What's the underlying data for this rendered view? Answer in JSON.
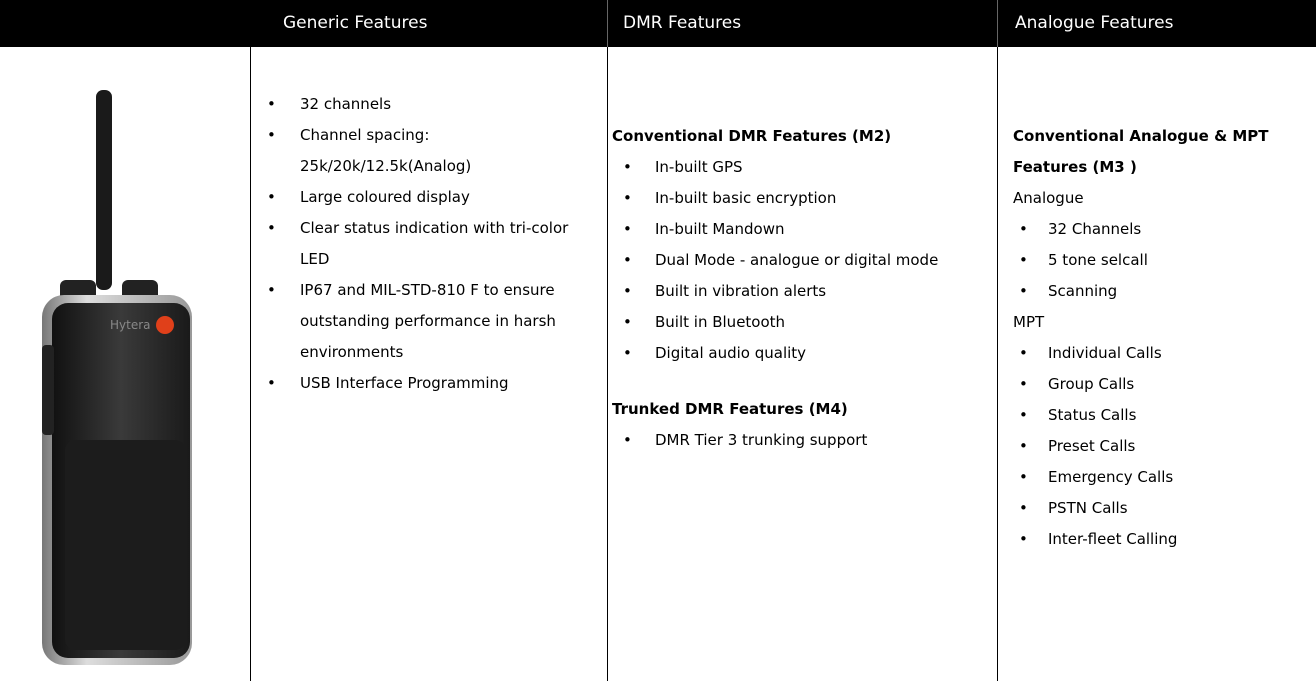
{
  "header": {
    "columns": [
      "Generic Features",
      "DMR Features",
      "Analogue Features"
    ]
  },
  "device": {
    "brand": "Hytera"
  },
  "generic": {
    "items": [
      "32 channels",
      "Channel spacing: 25k/20k/12.5k(Analog)",
      "Large coloured display",
      "Clear status indication with tri-color LED",
      "IP67 and MIL-STD-810 F to ensure outstanding performance in harsh environments",
      "USB Interface Programming"
    ]
  },
  "dmr": {
    "sections": [
      {
        "heading": "Conventional DMR Features (M2)",
        "items": [
          "In-built GPS",
          "In-built basic encryption",
          "In-built Mandown",
          "Dual Mode - analogue or digital mode",
          "Built in vibration alerts",
          "Built in Bluetooth",
          "Digital audio quality"
        ]
      },
      {
        "heading": "Trunked DMR Features (M4)",
        "items": [
          "DMR Tier 3 trunking support"
        ]
      }
    ]
  },
  "analogue": {
    "heading": "Conventional Analogue & MPT Features (M3 )",
    "groups": [
      {
        "label": "Analogue",
        "items": [
          "32 Channels",
          "5 tone selcall",
          "Scanning"
        ]
      },
      {
        "label": "MPT",
        "items": [
          "Individual Calls",
          "Group Calls",
          "Status Calls",
          "Preset Calls",
          "Emergency Calls",
          "PSTN Calls",
          "Inter-fleet Calling"
        ]
      }
    ]
  }
}
